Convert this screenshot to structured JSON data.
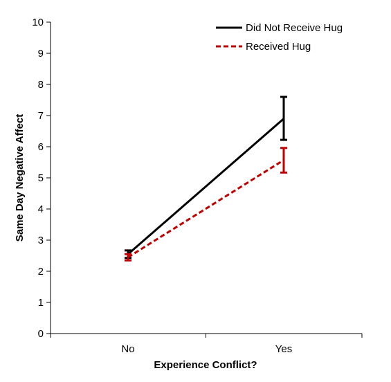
{
  "chart_data": {
    "type": "line",
    "xlabel": "Experience Conflict?",
    "ylabel": "Same Day Negative Affect",
    "categories": [
      "No",
      "Yes"
    ],
    "ylim": [
      0,
      10
    ],
    "yticks": [
      0,
      1,
      2,
      3,
      4,
      5,
      6,
      7,
      8,
      9,
      10
    ],
    "grid": false,
    "legend_position": "top-right",
    "series": [
      {
        "name": "Did Not Receive Hug",
        "values": [
          2.55,
          6.9
        ],
        "error_low": [
          2.43,
          6.22
        ],
        "error_high": [
          2.67,
          7.6
        ],
        "color": "#000000",
        "style": "solid"
      },
      {
        "name": "Received Hug",
        "values": [
          2.45,
          5.57
        ],
        "error_low": [
          2.35,
          5.17
        ],
        "error_high": [
          2.55,
          5.96
        ],
        "color": "#c00000",
        "style": "dashed"
      }
    ]
  }
}
